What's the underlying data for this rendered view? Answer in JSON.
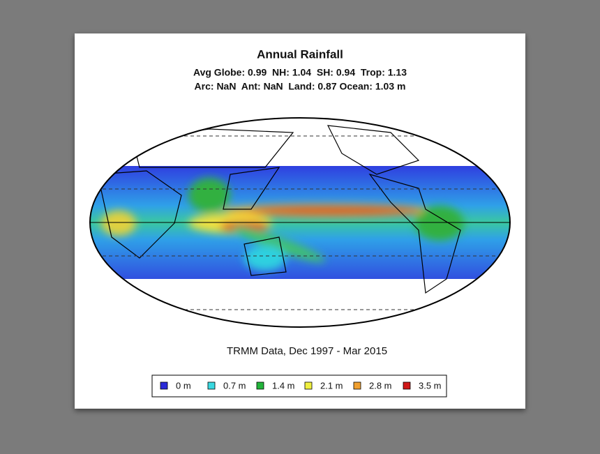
{
  "header": {
    "title": "Annual Rainfall",
    "stats": [
      "Avg Globe: 0.99  NH: 1.04  SH: 0.94  Trop: 1.13",
      "Arc: NaN  Ant: NaN  Land: 0.87 Ocean: 1.03 m"
    ]
  },
  "caption": "TRMM Data, Dec 1997 - Mar 2015",
  "legend": {
    "items": [
      {
        "label": "0 m",
        "color": "#2b2bd8"
      },
      {
        "label": "0.7 m",
        "color": "#3ad8e0"
      },
      {
        "label": "1.4 m",
        "color": "#22b43a"
      },
      {
        "label": "2.1 m",
        "color": "#f0f040"
      },
      {
        "label": "2.8 m",
        "color": "#f0a030"
      },
      {
        "label": "3.5 m",
        "color": "#d01818"
      }
    ]
  }
}
